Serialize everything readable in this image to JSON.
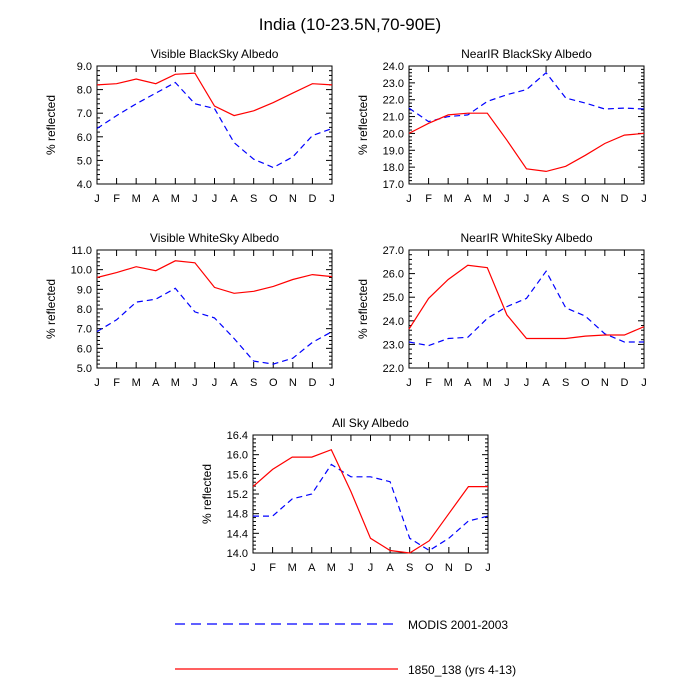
{
  "title": "India (10-23.5N,70-90E)",
  "colors": {
    "modis": "#0000ff",
    "model": "#ff0000",
    "axis": "#000000"
  },
  "legend": [
    {
      "name": "MODIS 2001-2003",
      "style": "dashed",
      "color": "#0000ff"
    },
    {
      "name": "1850_138 (yrs 4-13)",
      "style": "solid",
      "color": "#ff0000"
    }
  ],
  "chart_data": [
    {
      "id": "vis-black",
      "type": "line",
      "title": "Visible BlackSky Albedo",
      "ylabel": "% reflected",
      "xlabel": "",
      "categories": [
        "J",
        "F",
        "M",
        "A",
        "M",
        "J",
        "J",
        "A",
        "S",
        "O",
        "N",
        "D",
        "J"
      ],
      "ylim": [
        4.0,
        9.0
      ],
      "yticks": [
        "4.0",
        "5.0",
        "6.0",
        "7.0",
        "8.0",
        "9.0"
      ],
      "series": [
        {
          "name": "MODIS 2001-2003",
          "style": "dashed",
          "values": [
            6.35,
            6.9,
            7.4,
            7.85,
            8.3,
            7.4,
            7.2,
            5.75,
            5.05,
            4.7,
            5.15,
            6.05,
            6.35
          ]
        },
        {
          "name": "1850_138 (yrs 4-13)",
          "style": "solid",
          "values": [
            8.2,
            8.25,
            8.45,
            8.25,
            8.65,
            8.7,
            7.3,
            6.9,
            7.1,
            7.45,
            7.85,
            8.25,
            8.2
          ]
        }
      ]
    },
    {
      "id": "nir-black",
      "type": "line",
      "title": "NearIR BlackSky Albedo",
      "ylabel": "% reflected",
      "xlabel": "",
      "categories": [
        "J",
        "F",
        "M",
        "A",
        "M",
        "J",
        "J",
        "A",
        "S",
        "O",
        "N",
        "D",
        "J"
      ],
      "ylim": [
        17.0,
        24.0
      ],
      "yticks": [
        "17.0",
        "18.0",
        "19.0",
        "20.0",
        "21.0",
        "22.0",
        "23.0",
        "24.0"
      ],
      "series": [
        {
          "name": "MODIS 2001-2003",
          "style": "dashed",
          "values": [
            21.5,
            20.7,
            21.0,
            21.1,
            21.9,
            22.3,
            22.6,
            23.6,
            22.1,
            21.8,
            21.45,
            21.5,
            21.45
          ]
        },
        {
          "name": "1850_138 (yrs 4-13)",
          "style": "solid",
          "values": [
            20.0,
            20.6,
            21.1,
            21.2,
            21.2,
            19.6,
            17.9,
            17.75,
            18.05,
            18.7,
            19.4,
            19.9,
            20.0
          ]
        }
      ]
    },
    {
      "id": "vis-white",
      "type": "line",
      "title": "Visible WhiteSky Albedo",
      "ylabel": "% reflected",
      "xlabel": "",
      "categories": [
        "J",
        "F",
        "M",
        "A",
        "M",
        "J",
        "J",
        "A",
        "S",
        "O",
        "N",
        "D",
        "J"
      ],
      "ylim": [
        5.0,
        11.0
      ],
      "yticks": [
        "5.0",
        "6.0",
        "7.0",
        "8.0",
        "9.0",
        "10.0",
        "11.0"
      ],
      "series": [
        {
          "name": "MODIS 2001-2003",
          "style": "dashed",
          "values": [
            6.85,
            7.45,
            8.35,
            8.5,
            9.05,
            7.85,
            7.55,
            6.5,
            5.35,
            5.2,
            5.5,
            6.3,
            6.85
          ]
        },
        {
          "name": "1850_138 (yrs 4-13)",
          "style": "solid",
          "values": [
            9.6,
            9.85,
            10.15,
            9.95,
            10.45,
            10.35,
            9.1,
            8.8,
            8.9,
            9.15,
            9.5,
            9.75,
            9.65
          ]
        }
      ]
    },
    {
      "id": "nir-white",
      "type": "line",
      "title": "NearIR WhiteSky Albedo",
      "ylabel": "% reflected",
      "xlabel": "",
      "categories": [
        "J",
        "F",
        "M",
        "A",
        "M",
        "J",
        "J",
        "A",
        "S",
        "O",
        "N",
        "D",
        "J"
      ],
      "ylim": [
        22.0,
        27.0
      ],
      "yticks": [
        "22.0",
        "23.0",
        "24.0",
        "25.0",
        "26.0",
        "27.0"
      ],
      "series": [
        {
          "name": "MODIS 2001-2003",
          "style": "dashed",
          "values": [
            23.1,
            22.95,
            23.25,
            23.3,
            24.1,
            24.6,
            24.95,
            26.1,
            24.55,
            24.2,
            23.45,
            23.1,
            23.1
          ]
        },
        {
          "name": "1850_138 (yrs 4-13)",
          "style": "solid",
          "values": [
            23.65,
            24.95,
            25.75,
            26.35,
            26.25,
            24.25,
            23.25,
            23.25,
            23.25,
            23.35,
            23.4,
            23.4,
            23.75
          ]
        }
      ]
    },
    {
      "id": "all-sky",
      "type": "line",
      "title": "All Sky Albedo",
      "ylabel": "% reflected",
      "xlabel": "",
      "categories": [
        "J",
        "F",
        "M",
        "A",
        "M",
        "J",
        "J",
        "A",
        "S",
        "O",
        "N",
        "D",
        "J"
      ],
      "ylim": [
        14.0,
        16.4
      ],
      "yticks": [
        "14.0",
        "14.4",
        "14.8",
        "15.2",
        "15.6",
        "16.0",
        "16.4"
      ],
      "series": [
        {
          "name": "MODIS 2001-2003",
          "style": "dashed",
          "values": [
            14.75,
            14.75,
            15.1,
            15.2,
            15.8,
            15.55,
            15.55,
            15.45,
            14.3,
            14.05,
            14.3,
            14.65,
            14.75
          ]
        },
        {
          "name": "1850_138 (yrs 4-13)",
          "style": "solid",
          "values": [
            15.35,
            15.7,
            15.95,
            15.95,
            16.1,
            15.25,
            14.3,
            14.05,
            14.0,
            14.25,
            14.8,
            15.35,
            15.35
          ]
        }
      ]
    }
  ]
}
